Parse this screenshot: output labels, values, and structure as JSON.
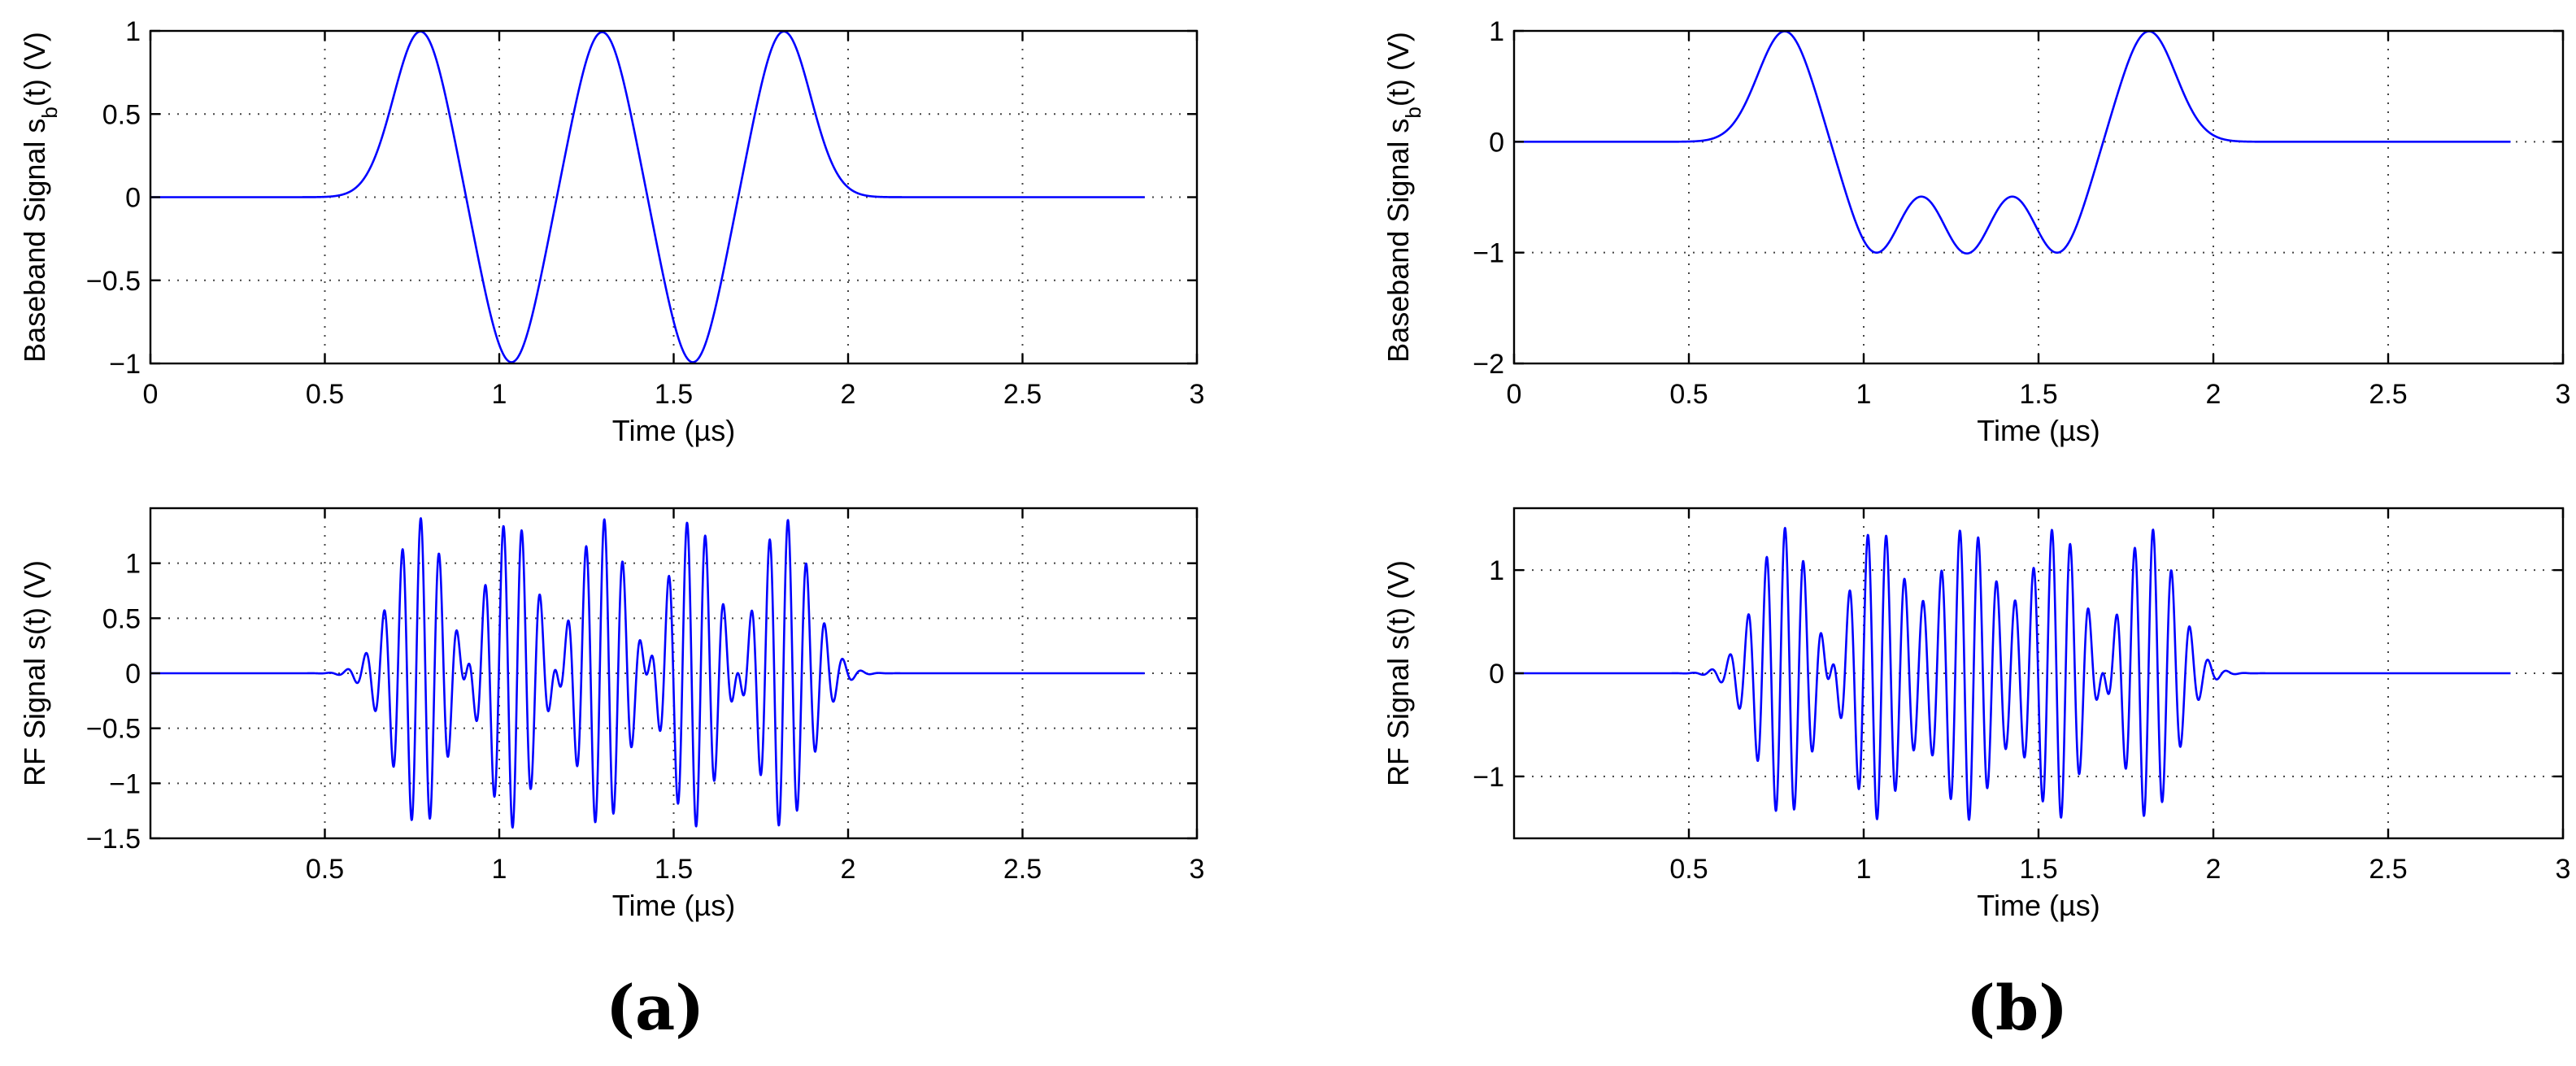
{
  "panels": [
    {
      "label": "(a)"
    },
    {
      "label": "(b)"
    }
  ],
  "chart_data": [
    {
      "type": "line",
      "panel": "(a)",
      "ylabel_prefix": "Baseband Signal s",
      "ylabel_sub": "b",
      "ylabel_suffix": "(t) (V)",
      "xlabel": "Time (µs)",
      "xlim": [
        0,
        3
      ],
      "ylim": [
        -1,
        1
      ],
      "xticks": [
        "0",
        "0.5",
        "1",
        "1.5",
        "2",
        "2.5",
        "3"
      ],
      "yticks": [
        "−1",
        "−0.5",
        "0",
        "0.5",
        "1"
      ],
      "grid": true,
      "color": "#0000ff",
      "symbols": [
        1,
        -1,
        1,
        -1,
        1
      ],
      "symbol_start": 0.775,
      "symbol_period": 0.26,
      "pulse_width": 0.11,
      "t_end": 2.85
    },
    {
      "type": "line",
      "panel": "(a)",
      "ylabel": "RF Signal s(t) (V)",
      "xlabel": "Time (µs)",
      "xlim": [
        0,
        3
      ],
      "ylim": [
        -1.5,
        1.5
      ],
      "xticks": [
        "0.5",
        "1",
        "1.5",
        "2",
        "2.5",
        "3"
      ],
      "yticks": [
        "−1.5",
        "−1",
        "−0.5",
        "0",
        "0.5",
        "1"
      ],
      "grid": true,
      "color": "#0000ff",
      "symbols": [
        1,
        -1,
        1,
        -1,
        1
      ],
      "symbol_start": 0.775,
      "symbol_period": 0.26,
      "pulse_width": 0.11,
      "carrier_mhz": 19,
      "t_end": 2.85
    },
    {
      "type": "line",
      "panel": "(b)",
      "ylabel_prefix": "Baseband Signal s",
      "ylabel_sub": "b",
      "ylabel_suffix": "(t) (V)",
      "xlabel": "Time (µs)",
      "xlim": [
        0,
        3
      ],
      "ylim": [
        -2,
        1
      ],
      "xticks": [
        "0",
        "0.5",
        "1",
        "1.5",
        "2",
        "2.5",
        "3"
      ],
      "yticks": [
        "−2",
        "−1",
        "0",
        "1"
      ],
      "grid": true,
      "color": "#0000ff",
      "symbols": [
        1,
        -1,
        -1,
        -1,
        1
      ],
      "symbol_start": 0.775,
      "symbol_period": 0.26,
      "pulse_width": 0.11,
      "t_end": 2.85
    },
    {
      "type": "line",
      "panel": "(b)",
      "ylabel": "RF Signal s(t) (V)",
      "xlabel": "Time (µs)",
      "xlim": [
        0,
        3
      ],
      "ylim": [
        -1.6,
        1.6
      ],
      "xticks": [
        "0.5",
        "1",
        "1.5",
        "2",
        "2.5",
        "3"
      ],
      "yticks": [
        "−1",
        "0",
        "1"
      ],
      "grid": true,
      "color": "#0000ff",
      "symbols": [
        1,
        -1,
        -1,
        -1,
        1
      ],
      "symbol_start": 0.775,
      "symbol_period": 0.26,
      "pulse_width": 0.11,
      "carrier_mhz": 19,
      "t_end": 2.85
    }
  ]
}
